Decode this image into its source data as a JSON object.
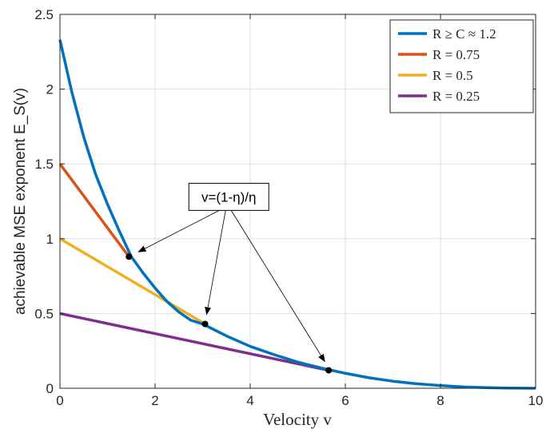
{
  "chart_data": {
    "type": "line",
    "title": "",
    "xlabel": "Velocity v",
    "ylabel": "achievable MSE exponent  E_S(v)",
    "xlim": [
      0,
      10
    ],
    "ylim": [
      0,
      2.5
    ],
    "xticks": [
      0,
      2,
      4,
      6,
      8,
      10
    ],
    "yticks": [
      0,
      0.5,
      1,
      1.5,
      2,
      2.5
    ],
    "xtick_labels": [
      "0",
      "2",
      "4",
      "6",
      "8",
      "10"
    ],
    "ytick_labels": [
      "0",
      "0.5",
      "1",
      "1.5",
      "2",
      "2.5"
    ],
    "grid": true,
    "legend_position": "top-right",
    "series": [
      {
        "name": "R ≥ C ≈ 1.2",
        "color": "#0072BD",
        "x": [
          0,
          0.25,
          0.5,
          0.75,
          1,
          1.25,
          1.5,
          1.75,
          2,
          2.25,
          2.5,
          2.75,
          3,
          3.5,
          4,
          4.5,
          5,
          5.5,
          6,
          6.5,
          7,
          7.5,
          8,
          8.5,
          9,
          9.5,
          10
        ],
        "y": [
          2.33,
          1.98,
          1.68,
          1.43,
          1.23,
          1.05,
          0.88,
          0.77,
          0.67,
          0.58,
          0.51,
          0.455,
          0.43,
          0.35,
          0.28,
          0.225,
          0.175,
          0.135,
          0.1,
          0.07,
          0.047,
          0.03,
          0.018,
          0.009,
          0.004,
          0.001,
          0.0
        ]
      },
      {
        "name": "R = 0.75",
        "color": "#D95319",
        "x": [
          0,
          1.45
        ],
        "y": [
          1.5,
          0.88
        ]
      },
      {
        "name": "R = 0.5",
        "color": "#EDB120",
        "x": [
          0,
          3.05
        ],
        "y": [
          1.0,
          0.43
        ]
      },
      {
        "name": "R = 0.25",
        "color": "#7E2F8E",
        "x": [
          0,
          5.65
        ],
        "y": [
          0.5,
          0.12
        ]
      }
    ],
    "points": [
      {
        "x": 1.45,
        "y": 0.88
      },
      {
        "x": 3.05,
        "y": 0.43
      },
      {
        "x": 5.65,
        "y": 0.12
      }
    ],
    "annotation": {
      "text": "v=(1-η)/η",
      "box_x": 3.55,
      "box_y": 1.28
    }
  }
}
